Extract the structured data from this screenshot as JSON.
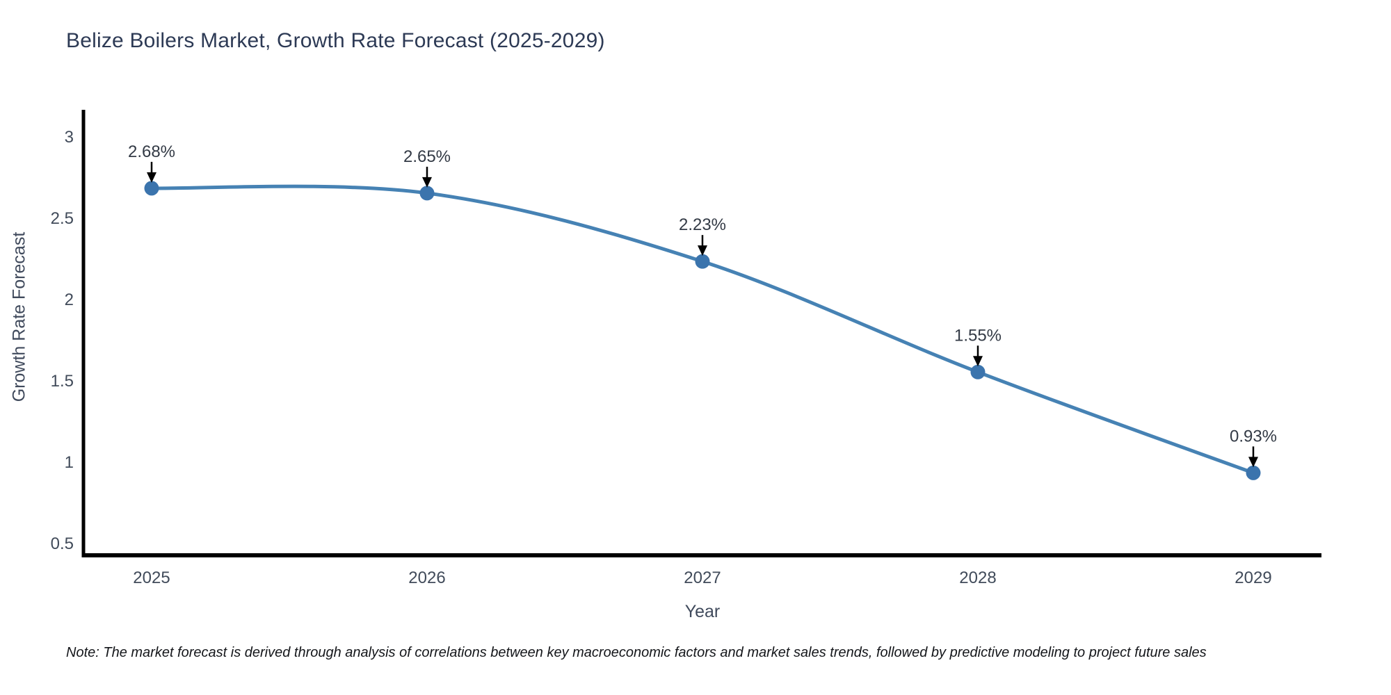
{
  "chart_data": {
    "type": "line",
    "title": "Belize Boilers Market, Growth Rate Forecast (2025-2029)",
    "xlabel": "Year",
    "ylabel": "Growth Rate Forecast",
    "categories": [
      "2025",
      "2026",
      "2027",
      "2028",
      "2029"
    ],
    "values": [
      2.68,
      2.65,
      2.23,
      1.55,
      0.93
    ],
    "point_labels": [
      "2.68%",
      "2.65%",
      "2.23%",
      "1.55%",
      "0.93%"
    ],
    "ytick_values": [
      0.5,
      1,
      1.5,
      2,
      2.5,
      3
    ],
    "ytick_labels": [
      "0.5",
      "1",
      "1.5",
      "2",
      "2.5",
      "3"
    ],
    "ylim": [
      0.42,
      3.16
    ],
    "grid": false,
    "legend": "none",
    "line_color": "#4682B4",
    "marker_color": "#3B74AD",
    "annotation_color": "#000000",
    "axis_color": "#000000"
  },
  "note": "Note: The market forecast is derived through analysis of correlations between key macroeconomic factors and market sales trends, followed by predictive modeling to project future sales"
}
